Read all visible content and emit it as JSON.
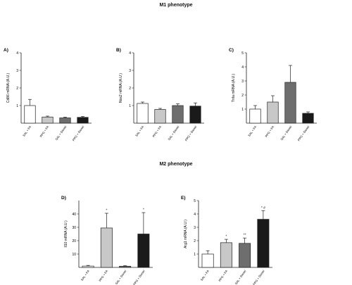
{
  "sections": {
    "top": "M1 phenotype",
    "bottom": "M2 phenotype"
  },
  "colors": {
    "bar_fills": [
      "#ffffff",
      "#c8c8c8",
      "#6e6e6e",
      "#1a1a1a"
    ],
    "stroke": "#222222",
    "significance": "#333333"
  },
  "chart_data": [
    {
      "type": "bar",
      "panel": "A)",
      "ylabel": "Cd86 mRNA (A.U.)",
      "categories": [
        "SAL + FA",
        "PPG + FA",
        "SAL + Diesel",
        "PPG + Diesel"
      ],
      "values": [
        1.0,
        0.35,
        0.3,
        0.33
      ],
      "errors": [
        0.35,
        0.05,
        0.04,
        0.05
      ],
      "ylim": [
        0,
        4
      ],
      "yticks": [
        "1",
        "2",
        "3",
        "4"
      ],
      "significance": [
        "",
        "",
        "",
        ""
      ]
    },
    {
      "type": "bar",
      "panel": "B)",
      "ylabel": "Nos2 mRNA (A.U.)",
      "categories": [
        "SAL + FA",
        "PPG + FA",
        "SAL + Diesel",
        "PPG + Diesel"
      ],
      "values": [
        1.12,
        0.78,
        1.0,
        0.97
      ],
      "errors": [
        0.08,
        0.06,
        0.1,
        0.18
      ],
      "ylim": [
        0,
        4
      ],
      "yticks": [
        "1",
        "2",
        "3",
        "4"
      ],
      "significance": [
        "",
        "",
        "",
        ""
      ]
    },
    {
      "type": "bar",
      "panel": "C)",
      "ylabel": "Tnfa mRNA (A.U.)",
      "categories": [
        "SAL + FA",
        "PPG + FA",
        "SAL + Diesel",
        "PPG + Diesel"
      ],
      "values": [
        1.0,
        1.5,
        2.9,
        0.7
      ],
      "errors": [
        0.25,
        0.45,
        1.2,
        0.1
      ],
      "ylim": [
        0,
        5
      ],
      "yticks": [
        "1",
        "2",
        "3",
        "4",
        "5"
      ],
      "significance": [
        "",
        "",
        "",
        ""
      ]
    },
    {
      "type": "bar",
      "panel": "D)",
      "ylabel": "Il10 mRNA (A.U.)",
      "categories": [
        "SAL + FA",
        "PPG + FA",
        "SAL + Diesel",
        "PPG + Diesel"
      ],
      "values": [
        1.0,
        29.5,
        0.9,
        25.0
      ],
      "errors": [
        0.5,
        11.0,
        0.4,
        16.0
      ],
      "ylim": [
        0,
        50
      ],
      "yticks": [
        "10",
        "20",
        "30",
        "40"
      ],
      "significance": [
        "",
        "*",
        "",
        "*"
      ]
    },
    {
      "type": "bar",
      "panel": "E)",
      "ylabel": "Arg1 mRNA (A.U.)",
      "categories": [
        "SAL + FA",
        "PPG + FA",
        "SAL + Diesel",
        "PPG + Diesel"
      ],
      "values": [
        1.0,
        1.85,
        1.8,
        3.6
      ],
      "errors": [
        0.25,
        0.25,
        0.4,
        0.65
      ],
      "ylim": [
        0,
        5
      ],
      "yticks": [
        "1",
        "2",
        "3",
        "4",
        "5"
      ],
      "significance": [
        "",
        "*",
        "**",
        "* #"
      ]
    }
  ]
}
